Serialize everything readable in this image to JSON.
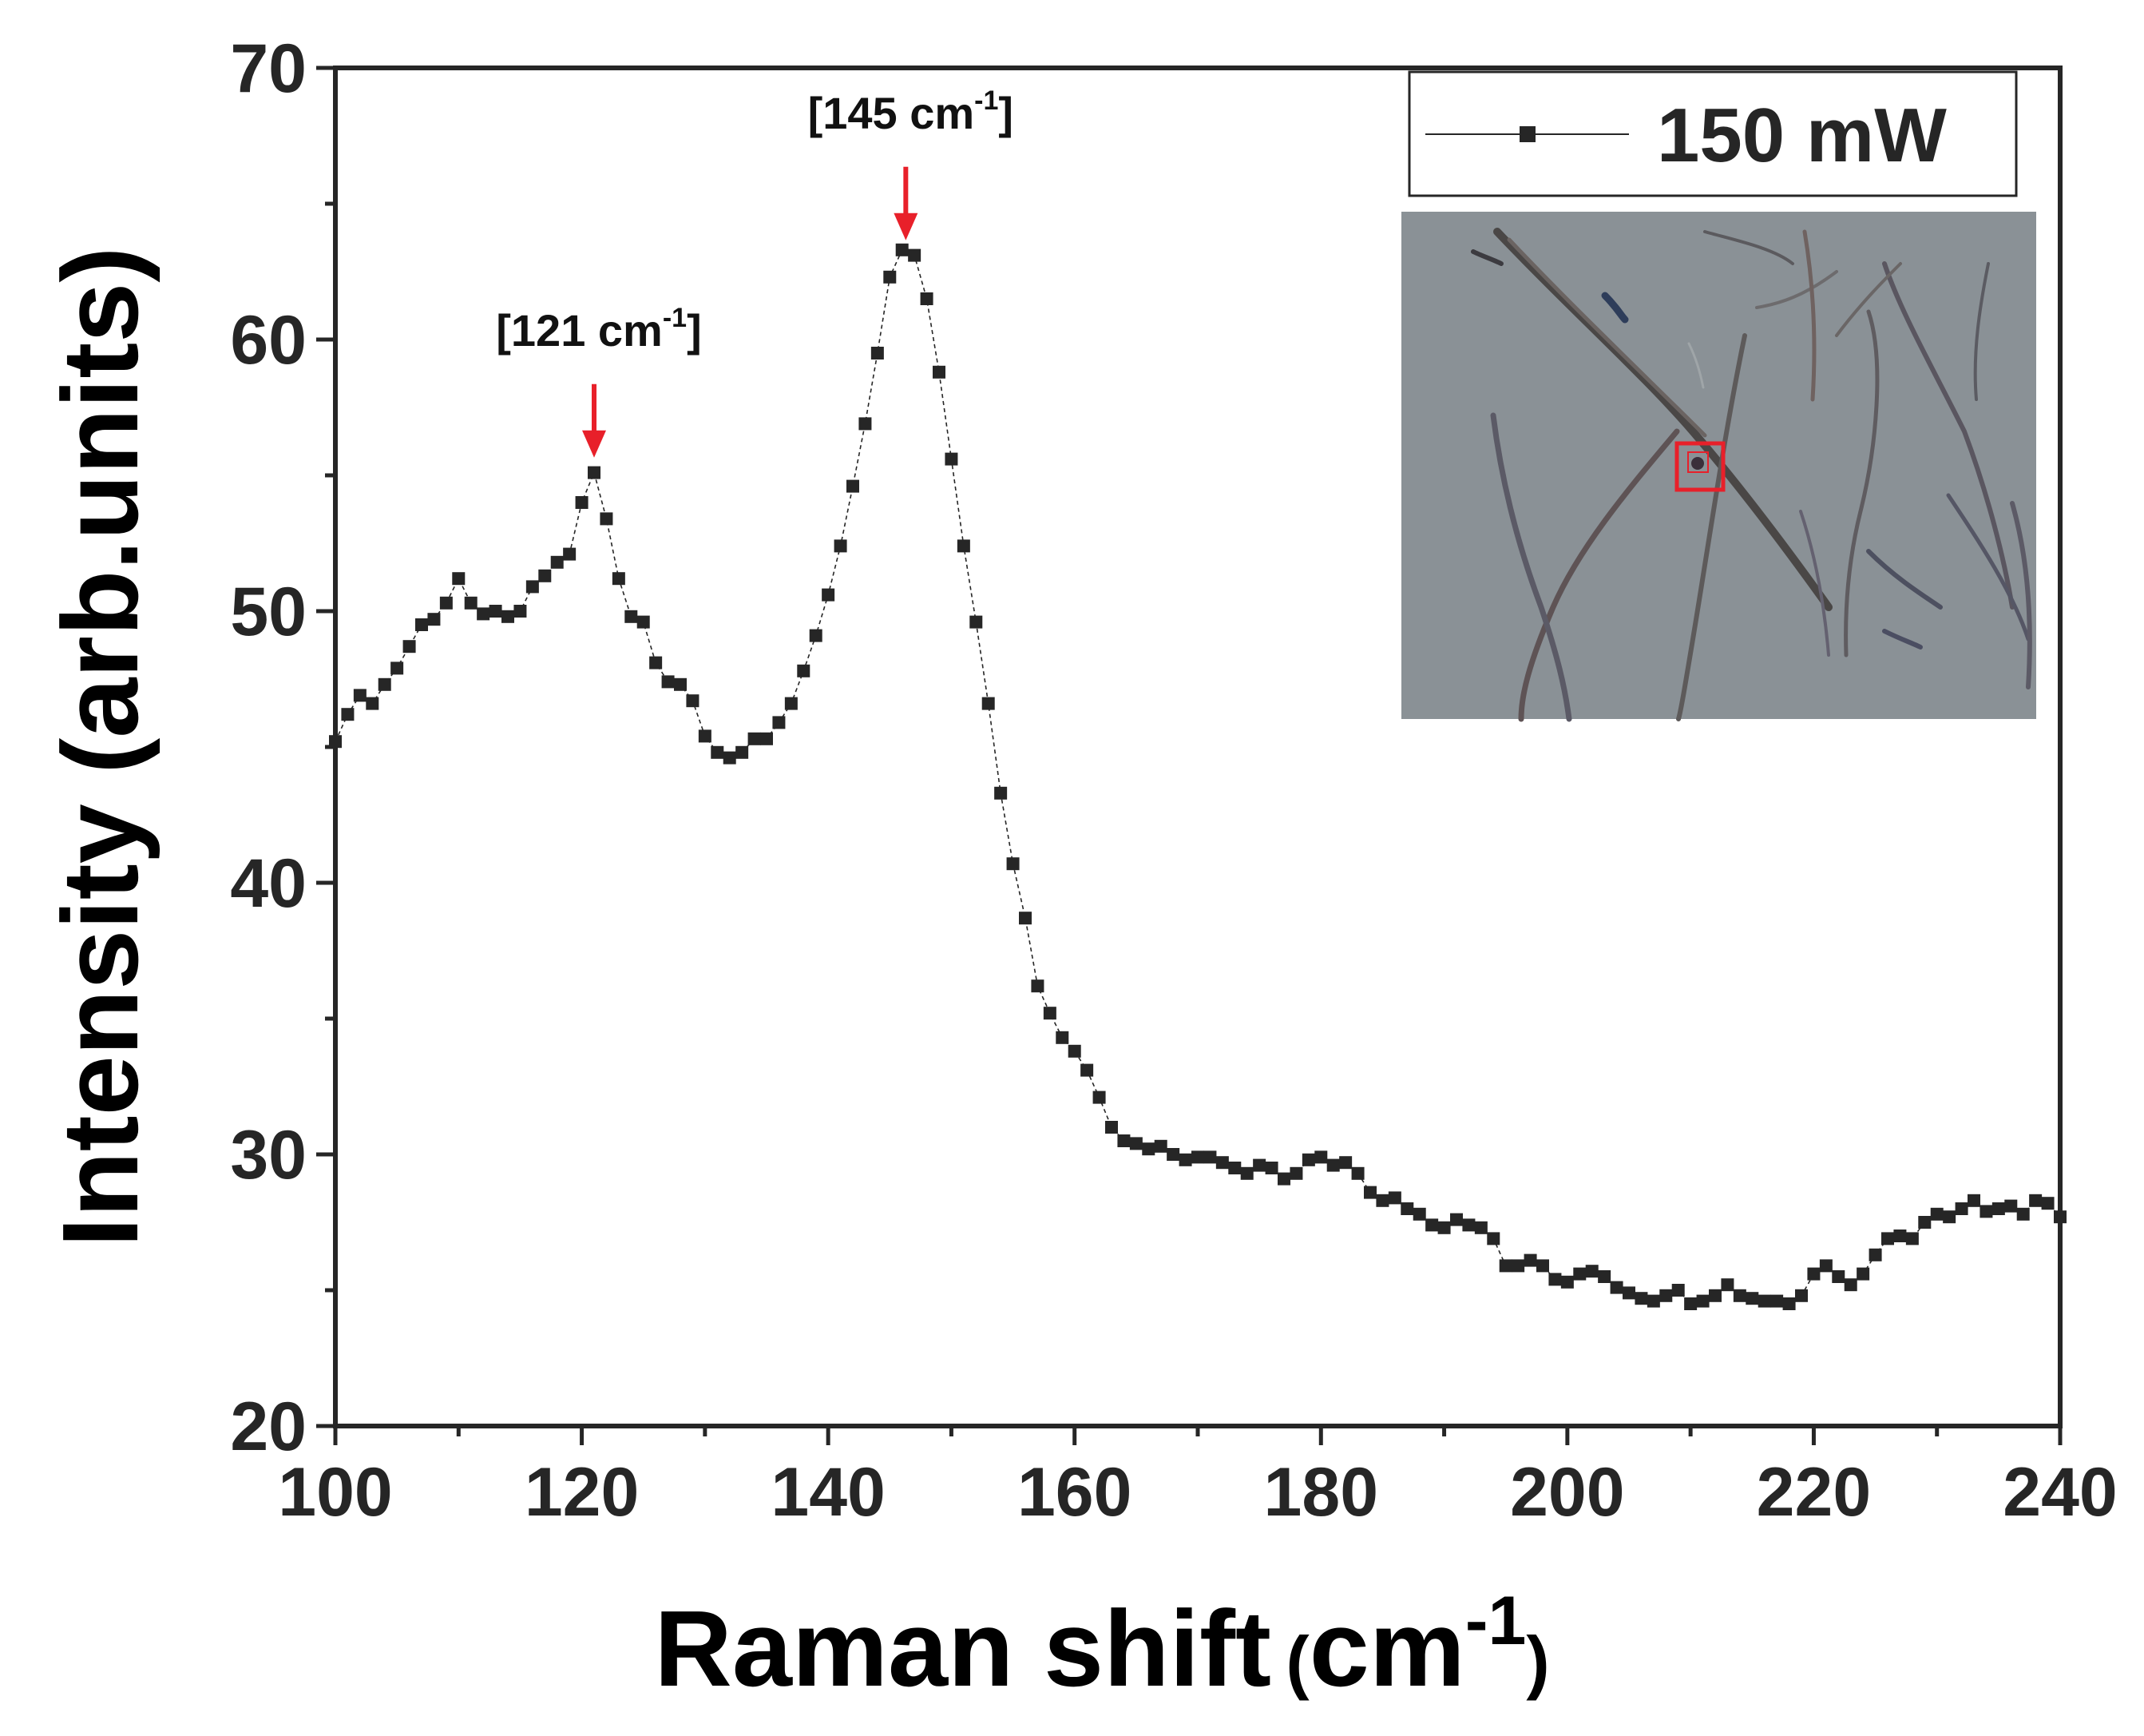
{
  "chart_data": {
    "type": "line",
    "title": "",
    "xlabel": "Raman shift",
    "xlabel_unit_base": "cm",
    "xlabel_unit_exp": "-1",
    "ylabel": "Intensity (arb.units)",
    "xlim": [
      100,
      240
    ],
    "ylim": [
      20,
      70
    ],
    "xticks": [
      100,
      120,
      140,
      160,
      180,
      200,
      220,
      240
    ],
    "yticks": [
      20,
      30,
      40,
      50,
      60,
      70
    ],
    "grid": false,
    "legend": {
      "position": "top-right",
      "entries": [
        "150 mW"
      ]
    },
    "colors": {
      "series": "#262626",
      "annotation_arrow": "#e8202a",
      "inset_marker": "#e8202a"
    },
    "series": [
      {
        "name": "150 mW",
        "marker": "square",
        "points": [
          [
            100,
            45.2
          ],
          [
            101,
            46.2
          ],
          [
            102,
            46.9
          ],
          [
            103,
            46.6
          ],
          [
            104,
            47.3
          ],
          [
            105,
            47.9
          ],
          [
            106,
            48.7
          ],
          [
            107,
            49.5
          ],
          [
            108,
            49.7
          ],
          [
            109,
            50.3
          ],
          [
            110,
            51.2
          ],
          [
            111,
            50.3
          ],
          [
            112,
            49.9
          ],
          [
            113,
            50.0
          ],
          [
            114,
            49.8
          ],
          [
            115,
            50.0
          ],
          [
            116,
            50.9
          ],
          [
            117,
            51.3
          ],
          [
            118,
            51.8
          ],
          [
            119,
            52.1
          ],
          [
            120,
            54.0
          ],
          [
            121,
            55.1
          ],
          [
            122,
            53.4
          ],
          [
            123,
            51.2
          ],
          [
            124,
            49.8
          ],
          [
            125,
            49.6
          ],
          [
            126,
            48.1
          ],
          [
            127,
            47.4
          ],
          [
            128,
            47.3
          ],
          [
            129,
            46.7
          ],
          [
            130,
            45.4
          ],
          [
            131,
            44.8
          ],
          [
            132,
            44.6
          ],
          [
            133,
            44.8
          ],
          [
            134,
            45.3
          ],
          [
            135,
            45.3
          ],
          [
            136,
            45.9
          ],
          [
            137,
            46.6
          ],
          [
            138,
            47.8
          ],
          [
            139,
            49.1
          ],
          [
            140,
            50.6
          ],
          [
            141,
            52.4
          ],
          [
            142,
            54.6
          ],
          [
            143,
            56.9
          ],
          [
            144,
            59.5
          ],
          [
            145,
            62.3
          ],
          [
            146,
            63.3
          ],
          [
            147,
            63.1
          ],
          [
            148,
            61.5
          ],
          [
            149,
            58.8
          ],
          [
            150,
            55.6
          ],
          [
            151,
            52.4
          ],
          [
            152,
            49.6
          ],
          [
            153,
            46.6
          ],
          [
            154,
            43.3
          ],
          [
            155,
            40.7
          ],
          [
            156,
            38.7
          ],
          [
            157,
            36.2
          ],
          [
            158,
            35.2
          ],
          [
            159,
            34.3
          ],
          [
            160,
            33.8
          ],
          [
            161,
            33.1
          ],
          [
            162,
            32.1
          ],
          [
            163,
            31.0
          ],
          [
            164,
            30.5
          ],
          [
            165,
            30.4
          ],
          [
            166,
            30.2
          ],
          [
            167,
            30.3
          ],
          [
            168,
            30.0
          ],
          [
            169,
            29.8
          ],
          [
            170,
            29.9
          ],
          [
            171,
            29.9
          ],
          [
            172,
            29.7
          ],
          [
            173,
            29.5
          ],
          [
            174,
            29.3
          ],
          [
            175,
            29.6
          ],
          [
            176,
            29.5
          ],
          [
            177,
            29.1
          ],
          [
            178,
            29.3
          ],
          [
            179,
            29.8
          ],
          [
            180,
            29.9
          ],
          [
            181,
            29.6
          ],
          [
            182,
            29.7
          ],
          [
            183,
            29.3
          ],
          [
            184,
            28.6
          ],
          [
            185,
            28.3
          ],
          [
            186,
            28.4
          ],
          [
            187,
            28.0
          ],
          [
            188,
            27.8
          ],
          [
            189,
            27.4
          ],
          [
            190,
            27.3
          ],
          [
            191,
            27.6
          ],
          [
            192,
            27.4
          ],
          [
            193,
            27.3
          ],
          [
            194,
            26.9
          ],
          [
            195,
            25.9
          ],
          [
            196,
            25.9
          ],
          [
            197,
            26.1
          ],
          [
            198,
            25.9
          ],
          [
            199,
            25.4
          ],
          [
            200,
            25.3
          ],
          [
            201,
            25.6
          ],
          [
            202,
            25.7
          ],
          [
            203,
            25.5
          ],
          [
            204,
            25.1
          ],
          [
            205,
            24.9
          ],
          [
            206,
            24.7
          ],
          [
            207,
            24.6
          ],
          [
            208,
            24.8
          ],
          [
            209,
            25.0
          ],
          [
            210,
            24.5
          ],
          [
            211,
            24.6
          ],
          [
            212,
            24.8
          ],
          [
            213,
            25.2
          ],
          [
            214,
            24.8
          ],
          [
            215,
            24.7
          ],
          [
            216,
            24.6
          ],
          [
            217,
            24.6
          ],
          [
            218,
            24.5
          ],
          [
            219,
            24.8
          ],
          [
            220,
            25.6
          ],
          [
            221,
            25.9
          ],
          [
            222,
            25.5
          ],
          [
            223,
            25.2
          ],
          [
            224,
            25.6
          ],
          [
            225,
            26.3
          ],
          [
            226,
            26.9
          ],
          [
            227,
            27.0
          ],
          [
            228,
            26.9
          ],
          [
            229,
            27.5
          ],
          [
            230,
            27.8
          ],
          [
            231,
            27.7
          ],
          [
            232,
            28.0
          ],
          [
            233,
            28.3
          ],
          [
            234,
            27.9
          ],
          [
            235,
            28.0
          ],
          [
            236,
            28.1
          ],
          [
            237,
            27.8
          ],
          [
            238,
            28.3
          ],
          [
            239,
            28.2
          ],
          [
            240,
            27.7
          ]
        ]
      }
    ],
    "annotations": [
      {
        "label": "[121 cm",
        "sup": "-1",
        "close": "]",
        "x": 121,
        "y": 55.3
      },
      {
        "label": "[145 cm",
        "sup": "-1",
        "close": "]",
        "x": 146.3,
        "y": 63.3
      }
    ]
  },
  "inset": {
    "description_icon": "optical-micrograph-nanowires",
    "background": "#8a9196"
  }
}
